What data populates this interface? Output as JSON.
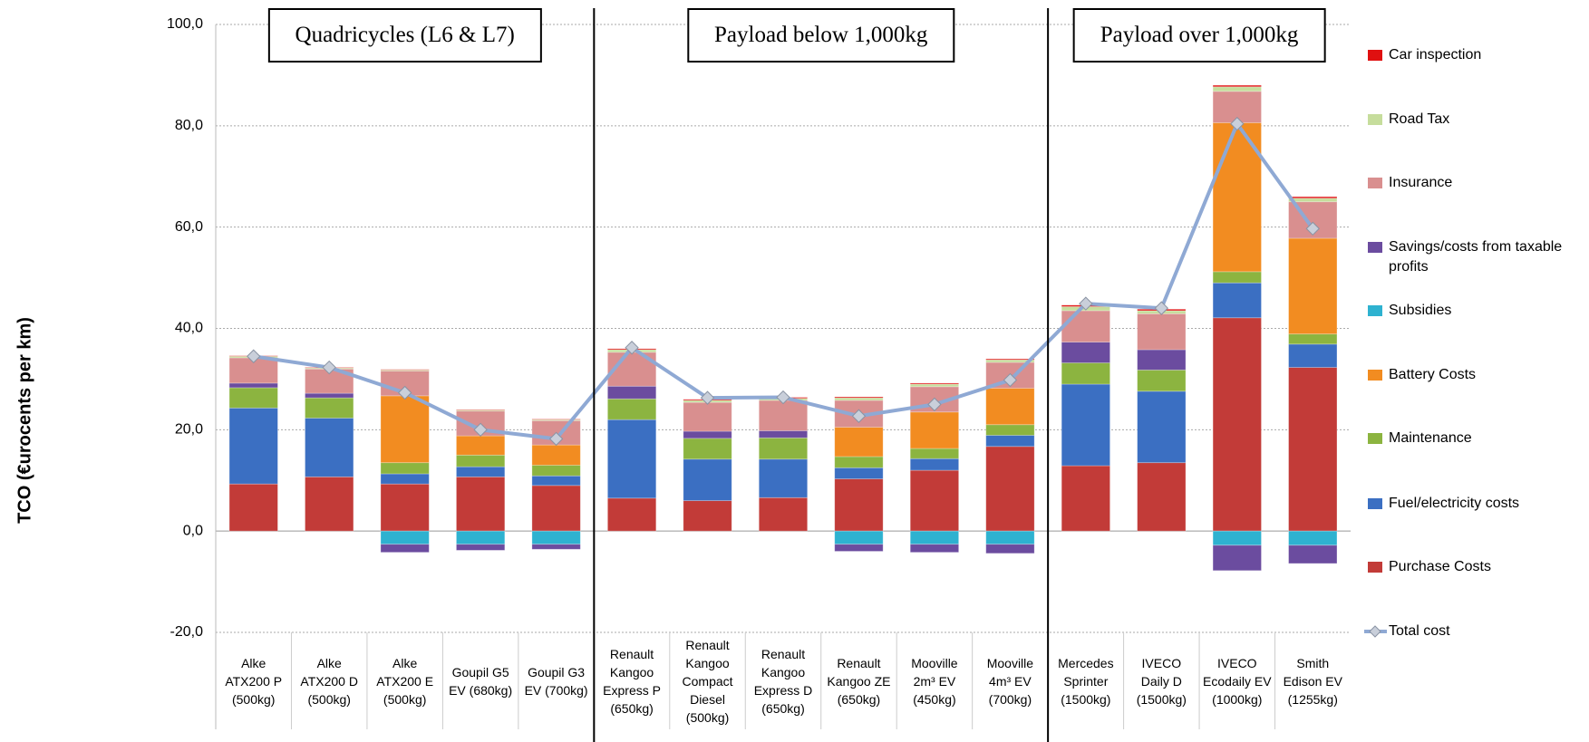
{
  "chart_data": {
    "type": "bar",
    "stacked": true,
    "y_label": "TCO (€urocents per km)",
    "annotations": [
      "Quadricycles (L6 & L7)",
      "Payload below 1,000kg",
      "Payload over 1,000kg"
    ],
    "categories": [
      "Alke\nATX200 P\n(500kg)",
      "Alke\nATX200 D\n(500kg)",
      "Alke\nATX200 E\n(500kg)",
      "Goupil G5\nEV (680kg)",
      "Goupil G3\nEV (700kg)",
      "Renault\nKangoo\nExpress P\n(650kg)",
      "Renault\nKangoo\nCompact\nDiesel\n(500kg)",
      "Renault\nKangoo\nExpress D\n(650kg)",
      "Renault\nKangoo ZE\n(650kg)",
      "Mooville\n2m³ EV\n(450kg)",
      "Mooville\n4m³ EV\n(700kg)",
      "Mercedes\nSprinter\n(1500kg)",
      "IVECO\nDaily D\n(1500kg)",
      "IVECO\nEcodaily EV\n(1000kg)",
      "Smith\nEdison EV\n(1255kg)"
    ],
    "series": [
      {
        "name": "Purchase Costs",
        "color": "#c23b38",
        "values": [
          9.3,
          10.7,
          9.3,
          10.7,
          9,
          6.5,
          6,
          6.6,
          10.3,
          12,
          16.7,
          12.9,
          13.5,
          42.1,
          32.3
        ]
      },
      {
        "name": "Fuel/electricity costs",
        "color": "#3b6fc2",
        "values": [
          15,
          11.6,
          2,
          2,
          1.9,
          15.5,
          8.2,
          7.6,
          2.2,
          2.3,
          2.2,
          16.1,
          14.1,
          6.9,
          4.6
        ]
      },
      {
        "name": "Maintenance",
        "color": "#8cb440",
        "values": [
          4,
          4,
          2.2,
          2.3,
          2.1,
          4.1,
          4.1,
          4.2,
          2.2,
          2,
          2.1,
          4.2,
          4.2,
          2.2,
          2
        ]
      },
      {
        "name": "Battery Costs",
        "color": "#f28c21",
        "values": [
          0,
          0,
          13.2,
          3.8,
          4,
          0,
          0,
          0,
          5.8,
          7.2,
          7.2,
          0,
          0,
          29.4,
          18.9
        ]
      },
      {
        "name": "Subsidies",
        "color": "#2eb2d0",
        "values": [
          0,
          0,
          -2.6,
          -2.6,
          -2.6,
          0,
          0,
          0,
          -2.6,
          -2.6,
          -2.6,
          0,
          0,
          -2.8,
          -2.8
        ]
      },
      {
        "name": "Savings/costs from taxable profits",
        "color": "#6b4c9f",
        "values": [
          0.9,
          0.9,
          -1.6,
          -1.2,
          -1,
          2.5,
          1.4,
          1.4,
          -1.4,
          -1.6,
          -1.8,
          4.1,
          4,
          -5,
          -3.6
        ]
      },
      {
        "name": "Insurance",
        "color": "#d98f8f",
        "values": [
          5,
          4.8,
          4.9,
          4.9,
          4.8,
          6.7,
          5.7,
          6,
          5.3,
          5,
          5.1,
          6.2,
          7.1,
          6.2,
          7.2
        ]
      },
      {
        "name": "Road Tax",
        "color": "#c6dd9c",
        "values": [
          0.3,
          0.2,
          0.2,
          0.2,
          0.2,
          0.5,
          0.4,
          0.4,
          0.5,
          0.5,
          0.5,
          0.8,
          0.6,
          0.9,
          0.7
        ]
      },
      {
        "name": "Car inspection",
        "color": "#e01010",
        "values": [
          0.1,
          0.1,
          0.1,
          0.1,
          0.1,
          0.2,
          0.2,
          0.2,
          0.2,
          0.2,
          0.2,
          0.3,
          0.3,
          0.3,
          0.3
        ]
      }
    ],
    "line": {
      "name": "Total cost",
      "color": "#8fa9d4",
      "values": [
        34.5,
        32.3,
        27.3,
        20,
        18.2,
        36.2,
        26.3,
        26.4,
        22.7,
        25,
        29.8,
        44.9,
        44,
        80.4,
        59.7
      ]
    },
    "ylim": [
      -20,
      100
    ],
    "yticks": [
      {
        "value": -20,
        "label": "-20,0"
      },
      {
        "value": 0,
        "label": "0,0"
      },
      {
        "value": 20,
        "label": "20,0"
      },
      {
        "value": 40,
        "label": "40,0"
      },
      {
        "value": 60,
        "label": "60,0"
      },
      {
        "value": 80,
        "label": "80,0"
      },
      {
        "value": 100,
        "label": "100,0"
      }
    ],
    "grid": true,
    "legend": "right"
  }
}
